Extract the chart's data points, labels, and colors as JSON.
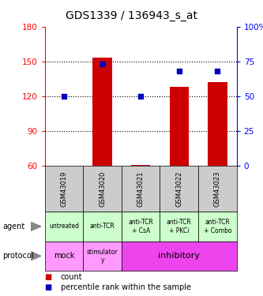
{
  "title": "GDS1339 / 136943_s_at",
  "samples": [
    "GSM43019",
    "GSM43020",
    "GSM43021",
    "GSM43022",
    "GSM43023"
  ],
  "counts": [
    60,
    153,
    61,
    128,
    132
  ],
  "percentiles": [
    50,
    73,
    50,
    68,
    68
  ],
  "ylim_left": [
    60,
    180
  ],
  "ylim_right": [
    0,
    100
  ],
  "yticks_left": [
    60,
    90,
    120,
    150,
    180
  ],
  "yticks_right": [
    0,
    25,
    50,
    75,
    100
  ],
  "ytick_labels_left": [
    "60",
    "90",
    "120",
    "150",
    "180"
  ],
  "ytick_labels_right": [
    "0",
    "25",
    "50",
    "75",
    "100%"
  ],
  "bar_color": "#cc0000",
  "dot_color": "#0000bb",
  "agent_labels": [
    "untreated",
    "anti-TCR",
    "anti-TCR\n+ CsA",
    "anti-TCR\n+ PKCi",
    "anti-TCR\n+ Combo"
  ],
  "protocol_labels": [
    "mock",
    "stimulator\ny",
    "inhibitory"
  ],
  "agent_bg": "#ccffcc",
  "protocol_mock_bg": "#ff99ff",
  "protocol_stim_bg": "#ff99ff",
  "protocol_inhib_bg": "#ee44ee",
  "sample_bg": "#cccccc",
  "legend_count_color": "#cc0000",
  "legend_pct_color": "#0000bb",
  "legend_count_label": "count",
  "legend_pct_label": "percentile rank within the sample"
}
